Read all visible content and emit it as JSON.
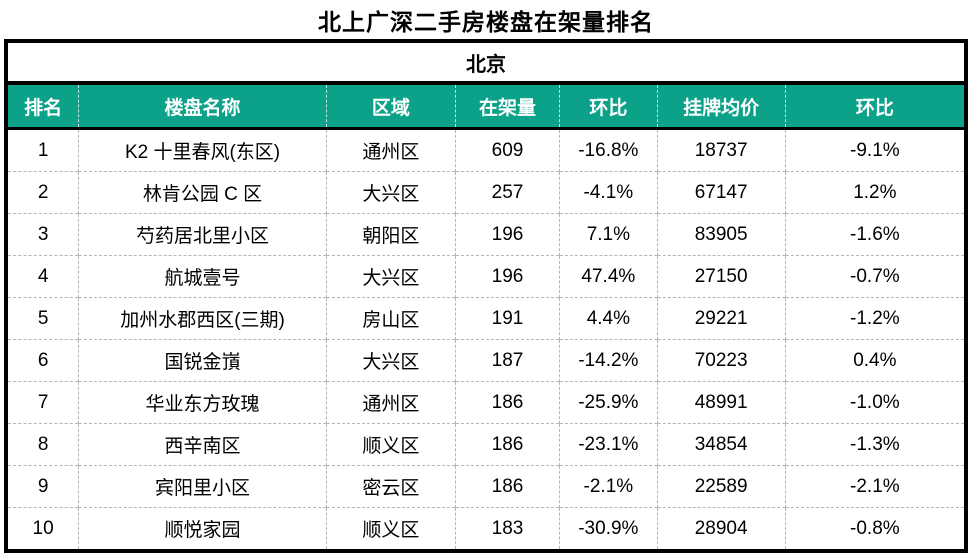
{
  "title": "北上广深二手房楼盘在架量排名",
  "colors": {
    "header_bg": "#0CA289",
    "header_text": "#FFFFFF",
    "outer_border": "#000000",
    "grid_dashed": "#B5B5B5"
  },
  "chart_data": {
    "type": "table",
    "title": "北上广深二手房楼盘在架量排名",
    "group_header": "北京",
    "columns": [
      "排名",
      "楼盘名称",
      "区域",
      "在架量",
      "环比",
      "挂牌均价",
      "环比"
    ],
    "rows": [
      [
        "1",
        "K2 十里春风(东区)",
        "通州区",
        "609",
        "-16.8%",
        "18737",
        "-9.1%"
      ],
      [
        "2",
        "林肯公园 C 区",
        "大兴区",
        "257",
        "-4.1%",
        "67147",
        "1.2%"
      ],
      [
        "3",
        "芍药居北里小区",
        "朝阳区",
        "196",
        "7.1%",
        "83905",
        "-1.6%"
      ],
      [
        "4",
        "航城壹号",
        "大兴区",
        "196",
        "47.4%",
        "27150",
        "-0.7%"
      ],
      [
        "5",
        "加州水郡西区(三期)",
        "房山区",
        "191",
        "4.4%",
        "29221",
        "-1.2%"
      ],
      [
        "6",
        "国锐金嵿",
        "大兴区",
        "187",
        "-14.2%",
        "70223",
        "0.4%"
      ],
      [
        "7",
        "华业东方玫瑰",
        "通州区",
        "186",
        "-25.9%",
        "48991",
        "-1.0%"
      ],
      [
        "8",
        "西辛南区",
        "顺义区",
        "186",
        "-23.1%",
        "34854",
        "-1.3%"
      ],
      [
        "9",
        "宾阳里小区",
        "密云区",
        "186",
        "-2.1%",
        "22589",
        "-2.1%"
      ],
      [
        "10",
        "顺悦家园",
        "顺义区",
        "183",
        "-30.9%",
        "28904",
        "-0.8%"
      ]
    ]
  }
}
